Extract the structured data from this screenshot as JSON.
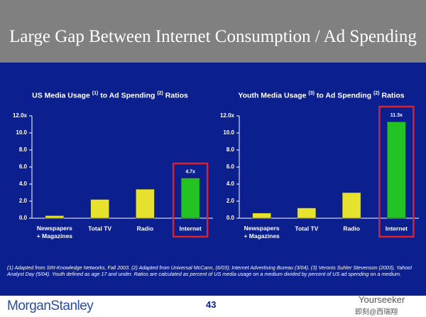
{
  "header": {
    "title": "Large Gap Between Internet Consumption / Ad Spending"
  },
  "chart_data": [
    {
      "type": "bar",
      "title": [
        "US Media Usage ",
        "(1)",
        " to Ad Spending ",
        "(2)",
        " Ratios"
      ],
      "categories": [
        "Newspapers\n+ Magazines",
        "Total TV",
        "Radio",
        "Internet"
      ],
      "values": [
        0.3,
        2.2,
        3.4,
        4.7
      ],
      "value_labels": [
        null,
        null,
        null,
        "4.7x"
      ],
      "colors": [
        "#e6e22e",
        "#e6e22e",
        "#e6e22e",
        "#22c322"
      ],
      "ylim": [
        0,
        12
      ],
      "yticks": [
        {
          "value": 0,
          "label": "0.0"
        },
        {
          "value": 2,
          "label": "2.0"
        },
        {
          "value": 4,
          "label": "4.0"
        },
        {
          "value": 6,
          "label": "6.0"
        },
        {
          "value": 8,
          "label": "8.0"
        },
        {
          "value": 10,
          "label": "10.0"
        },
        {
          "value": 12,
          "label": "12.0x"
        }
      ],
      "grid": false
    },
    {
      "type": "bar",
      "title": [
        "Youth Media Usage ",
        "(3)",
        " to Ad Spending ",
        "(2)",
        " Ratios"
      ],
      "categories": [
        "Newspapers\n+ Magazines",
        "Total TV",
        "Radio",
        "Internet"
      ],
      "values": [
        0.6,
        1.2,
        3.0,
        11.3
      ],
      "value_labels": [
        null,
        null,
        null,
        "11.3x"
      ],
      "colors": [
        "#e6e22e",
        "#e6e22e",
        "#e6e22e",
        "#22c322"
      ],
      "ylim": [
        0,
        12
      ],
      "yticks": [
        {
          "value": 0,
          "label": "0.0"
        },
        {
          "value": 2,
          "label": "2.0"
        },
        {
          "value": 4,
          "label": "4.0"
        },
        {
          "value": 6,
          "label": "6.0"
        },
        {
          "value": 8,
          "label": "8.0"
        },
        {
          "value": 10,
          "label": "10.0"
        },
        {
          "value": 12,
          "label": "12.0x"
        }
      ],
      "grid": false
    }
  ],
  "footnote": "(1) Adapted from SRI-Knowledge Networks, Fall 2003.  (2) Adapted from Universal McCann, (6/03); Internet Advertising Bureau (3/04). (3) Veronis Suhler Stevenson (2003), Yahoo! Analyst Day (5/04).  Youth defined as age 17 and under.  Ratios are calculated as percent of US media usage on a medium divided by percent of US ad spending on a medium.",
  "footer": {
    "brand": "MorganStanley",
    "page": "43",
    "watermark": [
      "Yourseeker",
      "即刻@西瑞翔"
    ]
  }
}
